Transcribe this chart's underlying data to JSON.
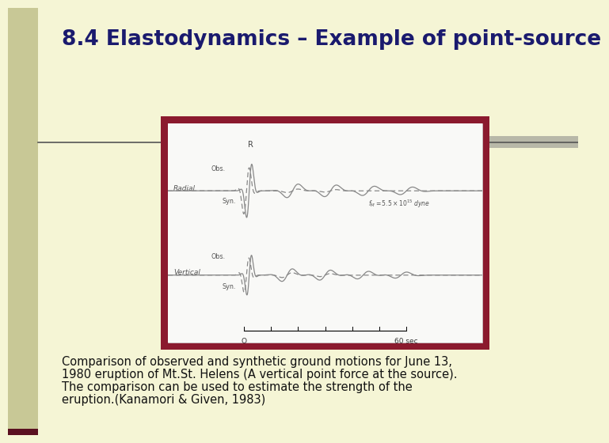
{
  "title": "8.4 Elastodynamics – Example of point-source",
  "bg_color": "#f5f5d5",
  "title_color": "#1a1a6e",
  "title_fontsize": 19,
  "caption_lines": [
    "Comparison of observed and synthetic ground motions for June 13,",
    "1980 eruption of Mt.St. Helens (A vertical point force at the source).",
    "The comparison can be used to estimate the strength of the",
    "eruption.(Kanamori & Given, 1983)"
  ],
  "caption_fontsize": 10.5,
  "caption_color": "#111111",
  "separator_color": "#555555",
  "box_border_color": "#8b1a2e",
  "box_bg_color": "#ffffff",
  "decorative_bar_color": "#b8b8a8",
  "left_bar_color": "#c8c896",
  "waveform_color": "#888888",
  "label_color": "#555555"
}
